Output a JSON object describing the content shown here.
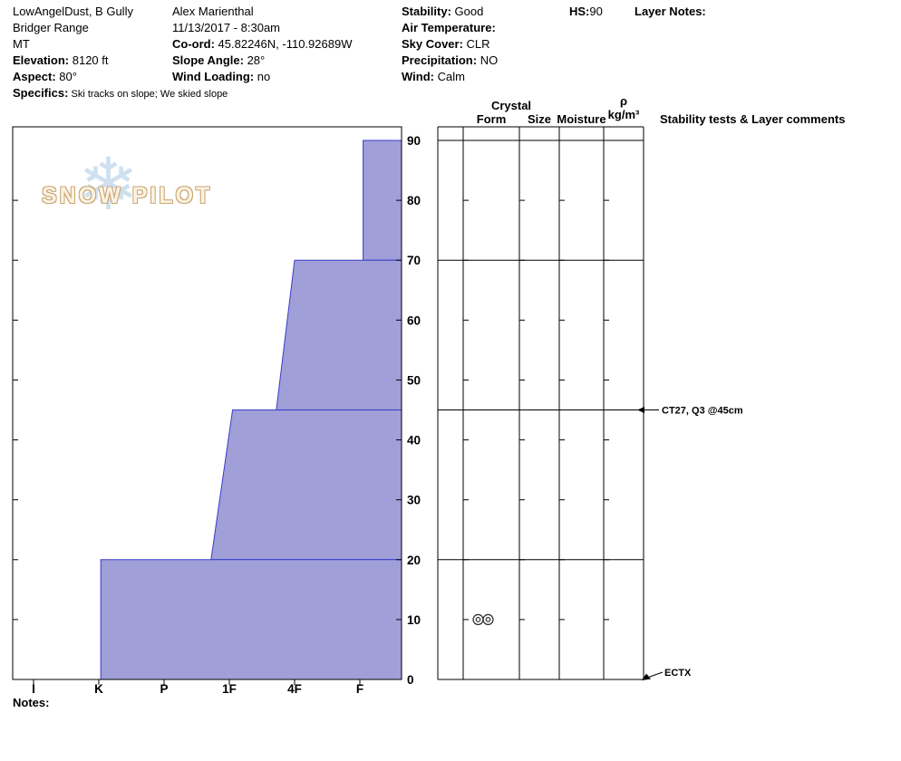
{
  "header": {
    "col1": [
      {
        "label": "",
        "value": "LowAngelDust, B Gully"
      },
      {
        "label": "",
        "value": "Bridger Range"
      },
      {
        "label": "",
        "value": "MT"
      },
      {
        "label": "Elevation:",
        "value": " 8120 ft"
      },
      {
        "label": "Aspect:",
        "value": " 80°"
      },
      {
        "label": "Specifics:",
        "value": " Ski tracks on slope; We skied slope"
      }
    ],
    "col2": [
      {
        "label": "",
        "value": "Alex Marienthal"
      },
      {
        "label": "",
        "value": "11/13/2017 - 8:30am"
      },
      {
        "label": "Co-ord:",
        "value": " 45.82246N, -110.92689W"
      },
      {
        "label": "Slope Angle:",
        "value": " 28°"
      },
      {
        "label": "Wind Loading:",
        "value": " no"
      }
    ],
    "col3": [
      {
        "label": "Stability:",
        "value": " Good"
      },
      {
        "label": "Air Temperature:",
        "value": ""
      },
      {
        "label": "Sky Cover:",
        "value": " CLR"
      },
      {
        "label": "Precipitation:",
        "value": " NO"
      },
      {
        "label": "Wind:",
        "value": " Calm"
      }
    ],
    "hs": {
      "label": "HS:",
      "value": "90"
    },
    "layer_notes": {
      "label": "Layer Notes:",
      "value": ""
    }
  },
  "watermark": {
    "text": "SNOW PILOT",
    "snowflake": "❄"
  },
  "panel": {
    "crystal": "Crystal",
    "form": "Form",
    "size": "Size",
    "moisture": "Moisture",
    "rho": "ρ",
    "rho_units": "kg/m³",
    "stability": "Stability tests & Layer comments"
  },
  "notes_label": "Notes:",
  "chart_data": {
    "type": "area",
    "title": "Snow pit hand-hardness profile",
    "hand_hardness_scale": [
      "I",
      "K",
      "P",
      "1F",
      "4F",
      "F"
    ],
    "depth_ticks": [
      0,
      10,
      20,
      30,
      40,
      50,
      60,
      70,
      80,
      90
    ],
    "depth_range": [
      0,
      90
    ],
    "total_depth_hs_cm": 90,
    "layers": [
      {
        "top_cm": 90,
        "bottom_cm": 70,
        "hardness_top": "F",
        "hardness_bottom": "F",
        "idx_top": 5.05,
        "idx_bottom": 5.05
      },
      {
        "top_cm": 70,
        "bottom_cm": 45,
        "hardness_top": "4F",
        "hardness_bottom": "4F+",
        "idx_top": 4.0,
        "idx_bottom": 3.72
      },
      {
        "top_cm": 45,
        "bottom_cm": 20,
        "hardness_top": "1F",
        "hardness_bottom": "1F+",
        "idx_top": 3.05,
        "idx_bottom": 2.72
      },
      {
        "top_cm": 20,
        "bottom_cm": 0,
        "hardness_top": "K",
        "hardness_bottom": "K",
        "idx_top": 1.03,
        "idx_bottom": 1.03
      }
    ],
    "grain_forms": [
      {
        "depth_cm": 10,
        "symbol": "double-circle"
      }
    ],
    "stability_tests": [
      {
        "depth_cm": 45,
        "label": "CT27, Q3 @45cm"
      },
      {
        "depth_cm": 0,
        "label": "ECTX"
      }
    ],
    "colors": {
      "layer_fill": "#a09fd8",
      "layer_stroke": "#3a3acc"
    }
  }
}
